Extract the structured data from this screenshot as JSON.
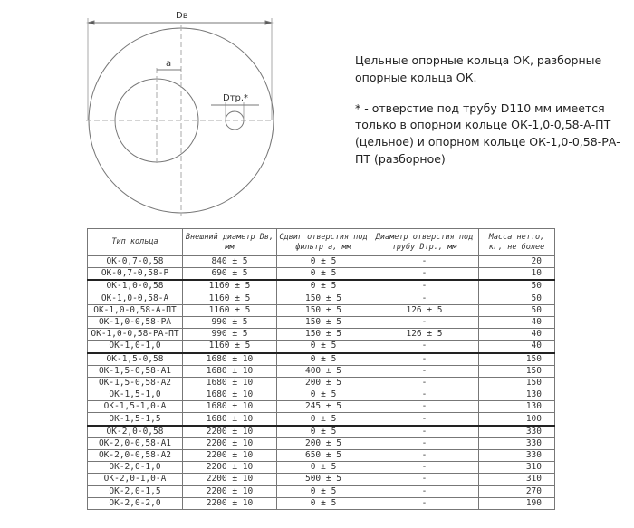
{
  "diagram": {
    "outer_label": "Dв",
    "offset_label": "a",
    "hole_label": "Dтр.*"
  },
  "notes": {
    "line1": "Цельные опорные кольца ОК, разборные опорные кольца ОК.",
    "line2": "* - отверстие под трубу D110 мм имеется только в опорном кольце ОК-1,0-0,58-А-ПТ (цельное) и опорном кольце ОК-1,0-0,58-РА-ПТ (разборное)"
  },
  "table": {
    "headers": [
      "Тип кольца",
      "Внешний диаметр Dв, мм",
      "Сдвиг отверстия под фильтр a, мм",
      "Диаметр отверстия под трубу Dтр., мм",
      "Масса нетто, кг, не более"
    ],
    "groups": [
      [
        [
          "ОК-0,7-0,58",
          "840 ± 5",
          "0 ± 5",
          "-",
          "20"
        ],
        [
          "ОК-0,7-0,58-Р",
          "690 ± 5",
          "0 ± 5",
          "-",
          "10"
        ]
      ],
      [
        [
          "ОК-1,0-0,58",
          "1160 ± 5",
          "0 ± 5",
          "-",
          "50"
        ],
        [
          "ОК-1,0-0,58-А",
          "1160 ± 5",
          "150 ± 5",
          "-",
          "50"
        ],
        [
          "ОК-1,0-0,58-А-ПТ",
          "1160 ± 5",
          "150 ± 5",
          "126 ± 5",
          "50"
        ],
        [
          "ОК-1,0-0,58-РА",
          "990 ± 5",
          "150 ± 5",
          "-",
          "40"
        ],
        [
          "ОК-1,0-0,58-РА-ПТ",
          "990 ± 5",
          "150 ± 5",
          "126 ± 5",
          "40"
        ],
        [
          "ОК-1,0-1,0",
          "1160 ± 5",
          "0 ± 5",
          "-",
          "40"
        ]
      ],
      [
        [
          "ОК-1,5-0,58",
          "1680 ± 10",
          "0 ± 5",
          "-",
          "150"
        ],
        [
          "ОК-1,5-0,58-А1",
          "1680 ± 10",
          "400 ± 5",
          "-",
          "150"
        ],
        [
          "ОК-1,5-0,58-А2",
          "1680 ± 10",
          "200 ± 5",
          "-",
          "150"
        ],
        [
          "ОК-1,5-1,0",
          "1680 ± 10",
          "0 ± 5",
          "-",
          "130"
        ],
        [
          "ОК-1,5-1,0-А",
          "1680 ± 10",
          "245 ± 5",
          "-",
          "130"
        ],
        [
          "ОК-1,5-1,5",
          "1680 ± 10",
          "0 ± 5",
          "-",
          "100"
        ]
      ],
      [
        [
          "ОК-2,0-0,58",
          "2200 ± 10",
          "0 ± 5",
          "-",
          "330"
        ],
        [
          "ОК-2,0-0,58-А1",
          "2200 ± 10",
          "200 ± 5",
          "-",
          "330"
        ],
        [
          "ОК-2,0-0,58-А2",
          "2200 ± 10",
          "650 ± 5",
          "-",
          "330"
        ],
        [
          "ОК-2,0-1,0",
          "2200 ± 10",
          "0 ± 5",
          "-",
          "310"
        ],
        [
          "ОК-2,0-1,0-А",
          "2200 ± 10",
          "500 ± 5",
          "-",
          "310"
        ],
        [
          "ОК-2,0-1,5",
          "2200 ± 10",
          "0 ± 5",
          "-",
          "270"
        ],
        [
          "ОК-2,0-2,0",
          "2200 ± 10",
          "0 ± 5",
          "-",
          "190"
        ]
      ]
    ]
  }
}
